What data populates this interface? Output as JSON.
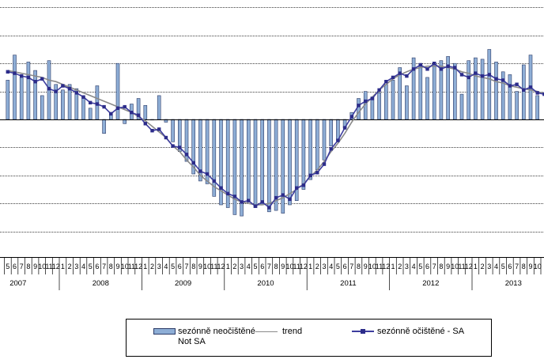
{
  "chart_data": {
    "type": "bar",
    "years": [
      "2007",
      "2008",
      "2009",
      "2010",
      "2011",
      "2012",
      "2013"
    ],
    "month_ticks": [
      "1",
      "2",
      "3",
      "4",
      "5",
      "6",
      "7",
      "8",
      "9",
      "10",
      "11",
      "12"
    ],
    "x_range": {
      "start": "2007-01",
      "end": "2013-12"
    },
    "visible_from_month": 4,
    "visible_to_month": 81,
    "ylim": [
      -8,
      9
    ],
    "grid": true,
    "legend_position": "bottom-center",
    "series": [
      {
        "name": "sezónně neočištěné Not SA",
        "type": "bar",
        "color": "#8eaed6",
        "values": [
          2.8,
          4.6,
          3.0,
          4.1,
          3.5,
          1.7,
          4.2,
          2.5,
          2.1,
          2.5,
          2.2,
          1.6,
          0.8,
          2.4,
          -1.0,
          0.5,
          4.0,
          -0.3,
          1.1,
          1.5,
          1.0,
          0.0,
          1.7,
          -0.2,
          -1.6,
          -2.3,
          -3.0,
          -3.9,
          -4.4,
          -4.6,
          -5.5,
          -6.1,
          -6.3,
          -6.8,
          -6.9,
          -5.8,
          -6.3,
          -6.1,
          -6.6,
          -6.5,
          -6.7,
          -6.1,
          -5.8,
          -5.0,
          -4.3,
          -3.6,
          -2.9,
          -1.9,
          -1.5,
          -0.6,
          0.5,
          1.5,
          2.0,
          1.6,
          1.9,
          2.5,
          2.8,
          3.7,
          2.4,
          4.4,
          4.0,
          3.0,
          4.1,
          4.2,
          4.5,
          4.0,
          1.8,
          4.2,
          4.4,
          4.3,
          5.0,
          4.1,
          3.4,
          3.2,
          2.0,
          3.9,
          4.6,
          1.7,
          3.6,
          0.7,
          2.0,
          1.4
        ]
      },
      {
        "name": "trend",
        "type": "line",
        "color": "#8a8a8a",
        "values": [
          3.5,
          3.4,
          3.3,
          3.2,
          3.1,
          3.0,
          2.8,
          2.7,
          2.5,
          2.3,
          2.1,
          1.9,
          1.7,
          1.5,
          1.3,
          1.1,
          0.9,
          0.7,
          0.5,
          0.2,
          -0.1,
          -0.5,
          -0.9,
          -1.3,
          -1.9,
          -2.3,
          -2.9,
          -3.4,
          -4.0,
          -4.4,
          -4.8,
          -5.1,
          -5.4,
          -5.7,
          -5.9,
          -6.0,
          -6.1,
          -6.1,
          -6.0,
          -5.8,
          -5.6,
          -5.3,
          -5.0,
          -4.6,
          -4.1,
          -3.6,
          -3.0,
          -2.3,
          -1.7,
          -1.0,
          -0.2,
          0.5,
          1.1,
          1.6,
          2.1,
          2.5,
          2.9,
          3.2,
          3.4,
          3.6,
          3.7,
          3.8,
          3.8,
          3.8,
          3.7,
          3.6,
          3.4,
          3.3,
          3.1,
          3.0,
          2.9,
          2.7,
          2.6,
          2.4,
          2.3,
          2.2,
          2.1,
          2.0,
          1.8,
          1.7,
          1.6,
          1.4
        ]
      },
      {
        "name": "sezónně očištěné - SA",
        "type": "line",
        "color": "#3d3d9e",
        "values": [
          3.4,
          3.3,
          3.1,
          3.0,
          2.7,
          2.9,
          2.2,
          2.0,
          2.4,
          2.2,
          1.9,
          1.6,
          1.2,
          1.1,
          0.9,
          0.4,
          0.8,
          0.9,
          0.5,
          0.3,
          -0.3,
          -0.8,
          -0.7,
          -1.3,
          -1.9,
          -2.0,
          -2.5,
          -3.1,
          -3.7,
          -3.9,
          -4.4,
          -4.9,
          -5.3,
          -5.5,
          -5.9,
          -5.8,
          -6.2,
          -5.9,
          -6.3,
          -5.6,
          -5.4,
          -5.7,
          -4.9,
          -4.7,
          -4.0,
          -3.8,
          -3.2,
          -2.1,
          -1.5,
          -0.6,
          0.2,
          1.0,
          1.3,
          1.5,
          2.1,
          2.7,
          3.0,
          3.3,
          3.1,
          3.6,
          3.9,
          3.6,
          4.0,
          3.6,
          3.8,
          3.7,
          3.2,
          3.0,
          3.3,
          3.1,
          3.2,
          2.9,
          2.8,
          2.4,
          2.5,
          2.1,
          2.3,
          1.9,
          1.8,
          1.6,
          1.7,
          1.3
        ]
      }
    ]
  }
}
